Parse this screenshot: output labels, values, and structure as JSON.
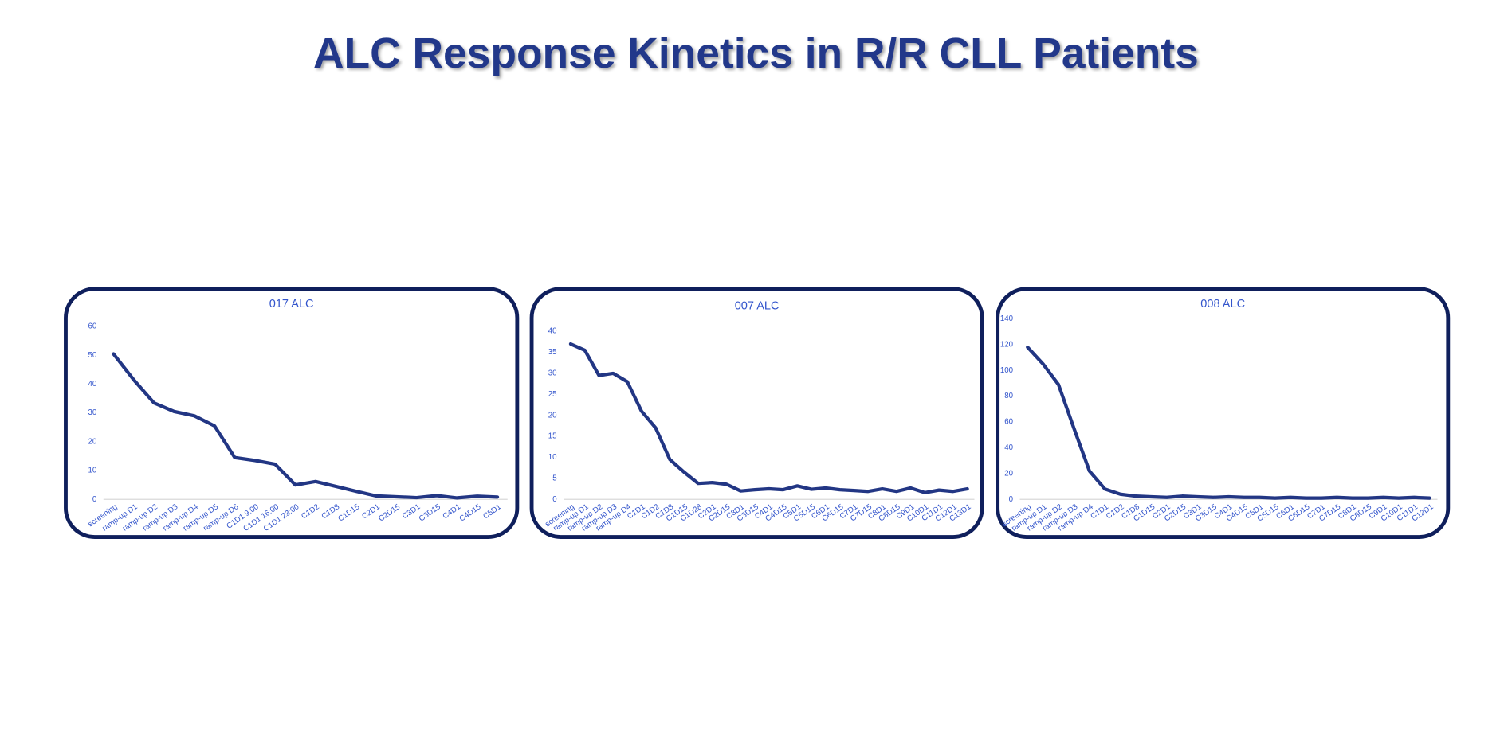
{
  "title": "ALC Response Kinetics in R/R CLL Patients",
  "chart_data": [
    {
      "type": "line",
      "title": "017 ALC",
      "color": "#223684",
      "categories": [
        "screening",
        "ramp-up D1",
        "ramp-up D2",
        "ramp-up D3",
        "ramp-up D4",
        "ramp-up D5",
        "ramp-up D6",
        "C1D1 9:00",
        "C1D1 16:00",
        "C1D1 23:00",
        "C1D2",
        "C1D8",
        "C1D15",
        "C2D1",
        "C2D15",
        "C3D1",
        "C3D15",
        "C4D1",
        "C4D15",
        "C5D1"
      ],
      "values": [
        50.5,
        41.5,
        33.5,
        30.5,
        29,
        25.5,
        14.5,
        13.5,
        12.2,
        5,
        6.2,
        4.5,
        2.8,
        1.2,
        0.9,
        0.6,
        1.3,
        0.5,
        1.1,
        0.8
      ],
      "ylim": [
        0,
        60
      ],
      "yticks": [
        0,
        10,
        20,
        30,
        40,
        50,
        60
      ]
    },
    {
      "type": "line",
      "title": "007 ALC",
      "color": "#223684",
      "categories": [
        "screening",
        "ramp-up D1",
        "ramp-up D2",
        "ramp-up D3",
        "ramp-up D4",
        "C1D1",
        "C1D2",
        "C1D8",
        "C1D15",
        "C1D28",
        "C2D1",
        "C2D15",
        "C3D1",
        "C3D15",
        "C4D1",
        "C4D15",
        "C5D1",
        "C5D15",
        "C6D1",
        "C6D15",
        "C7D1",
        "C7D15",
        "C8D1",
        "C8D15",
        "C9D1",
        "C10D1",
        "C11D1",
        "C12D1",
        "C13D1"
      ],
      "values": [
        37,
        35.5,
        29.5,
        30,
        28,
        21,
        17,
        9.5,
        6.5,
        3.8,
        4,
        3.6,
        2,
        2.3,
        2.5,
        2.3,
        3.2,
        2.4,
        2.7,
        2.3,
        2.1,
        1.9,
        2.5,
        1.9,
        2.7,
        1.6,
        2.2,
        1.9,
        2.5
      ],
      "ylim": [
        0,
        40
      ],
      "yticks": [
        0,
        5,
        10,
        15,
        20,
        25,
        30,
        35,
        40
      ]
    },
    {
      "type": "line",
      "title": "008 ALC",
      "color": "#223684",
      "categories": [
        "screening",
        "ramp-up D1",
        "ramp-up D2",
        "ramp-up D3",
        "ramp-up D4",
        "C1D1",
        "C1D2",
        "C1D8",
        "C1D15",
        "C2D1",
        "C2D15",
        "C3D1",
        "C3D15",
        "C4D1",
        "C4D15",
        "C5D1",
        "C5D15",
        "C6D1",
        "C6D15",
        "C7D1",
        "C7D15",
        "C8D1",
        "C8D15",
        "C9D1",
        "C10D1",
        "C11D1",
        "C12D1"
      ],
      "values": [
        118,
        105,
        89,
        55,
        22,
        8,
        4,
        2.5,
        2,
        1.5,
        2.5,
        2,
        1.5,
        2,
        1.5,
        1.5,
        1,
        1.5,
        1,
        1,
        1.5,
        1,
        1,
        1.5,
        1,
        1.5,
        1
      ],
      "ylim": [
        0,
        140
      ],
      "yticks": [
        0,
        20,
        40,
        60,
        80,
        100,
        120,
        140
      ]
    }
  ]
}
